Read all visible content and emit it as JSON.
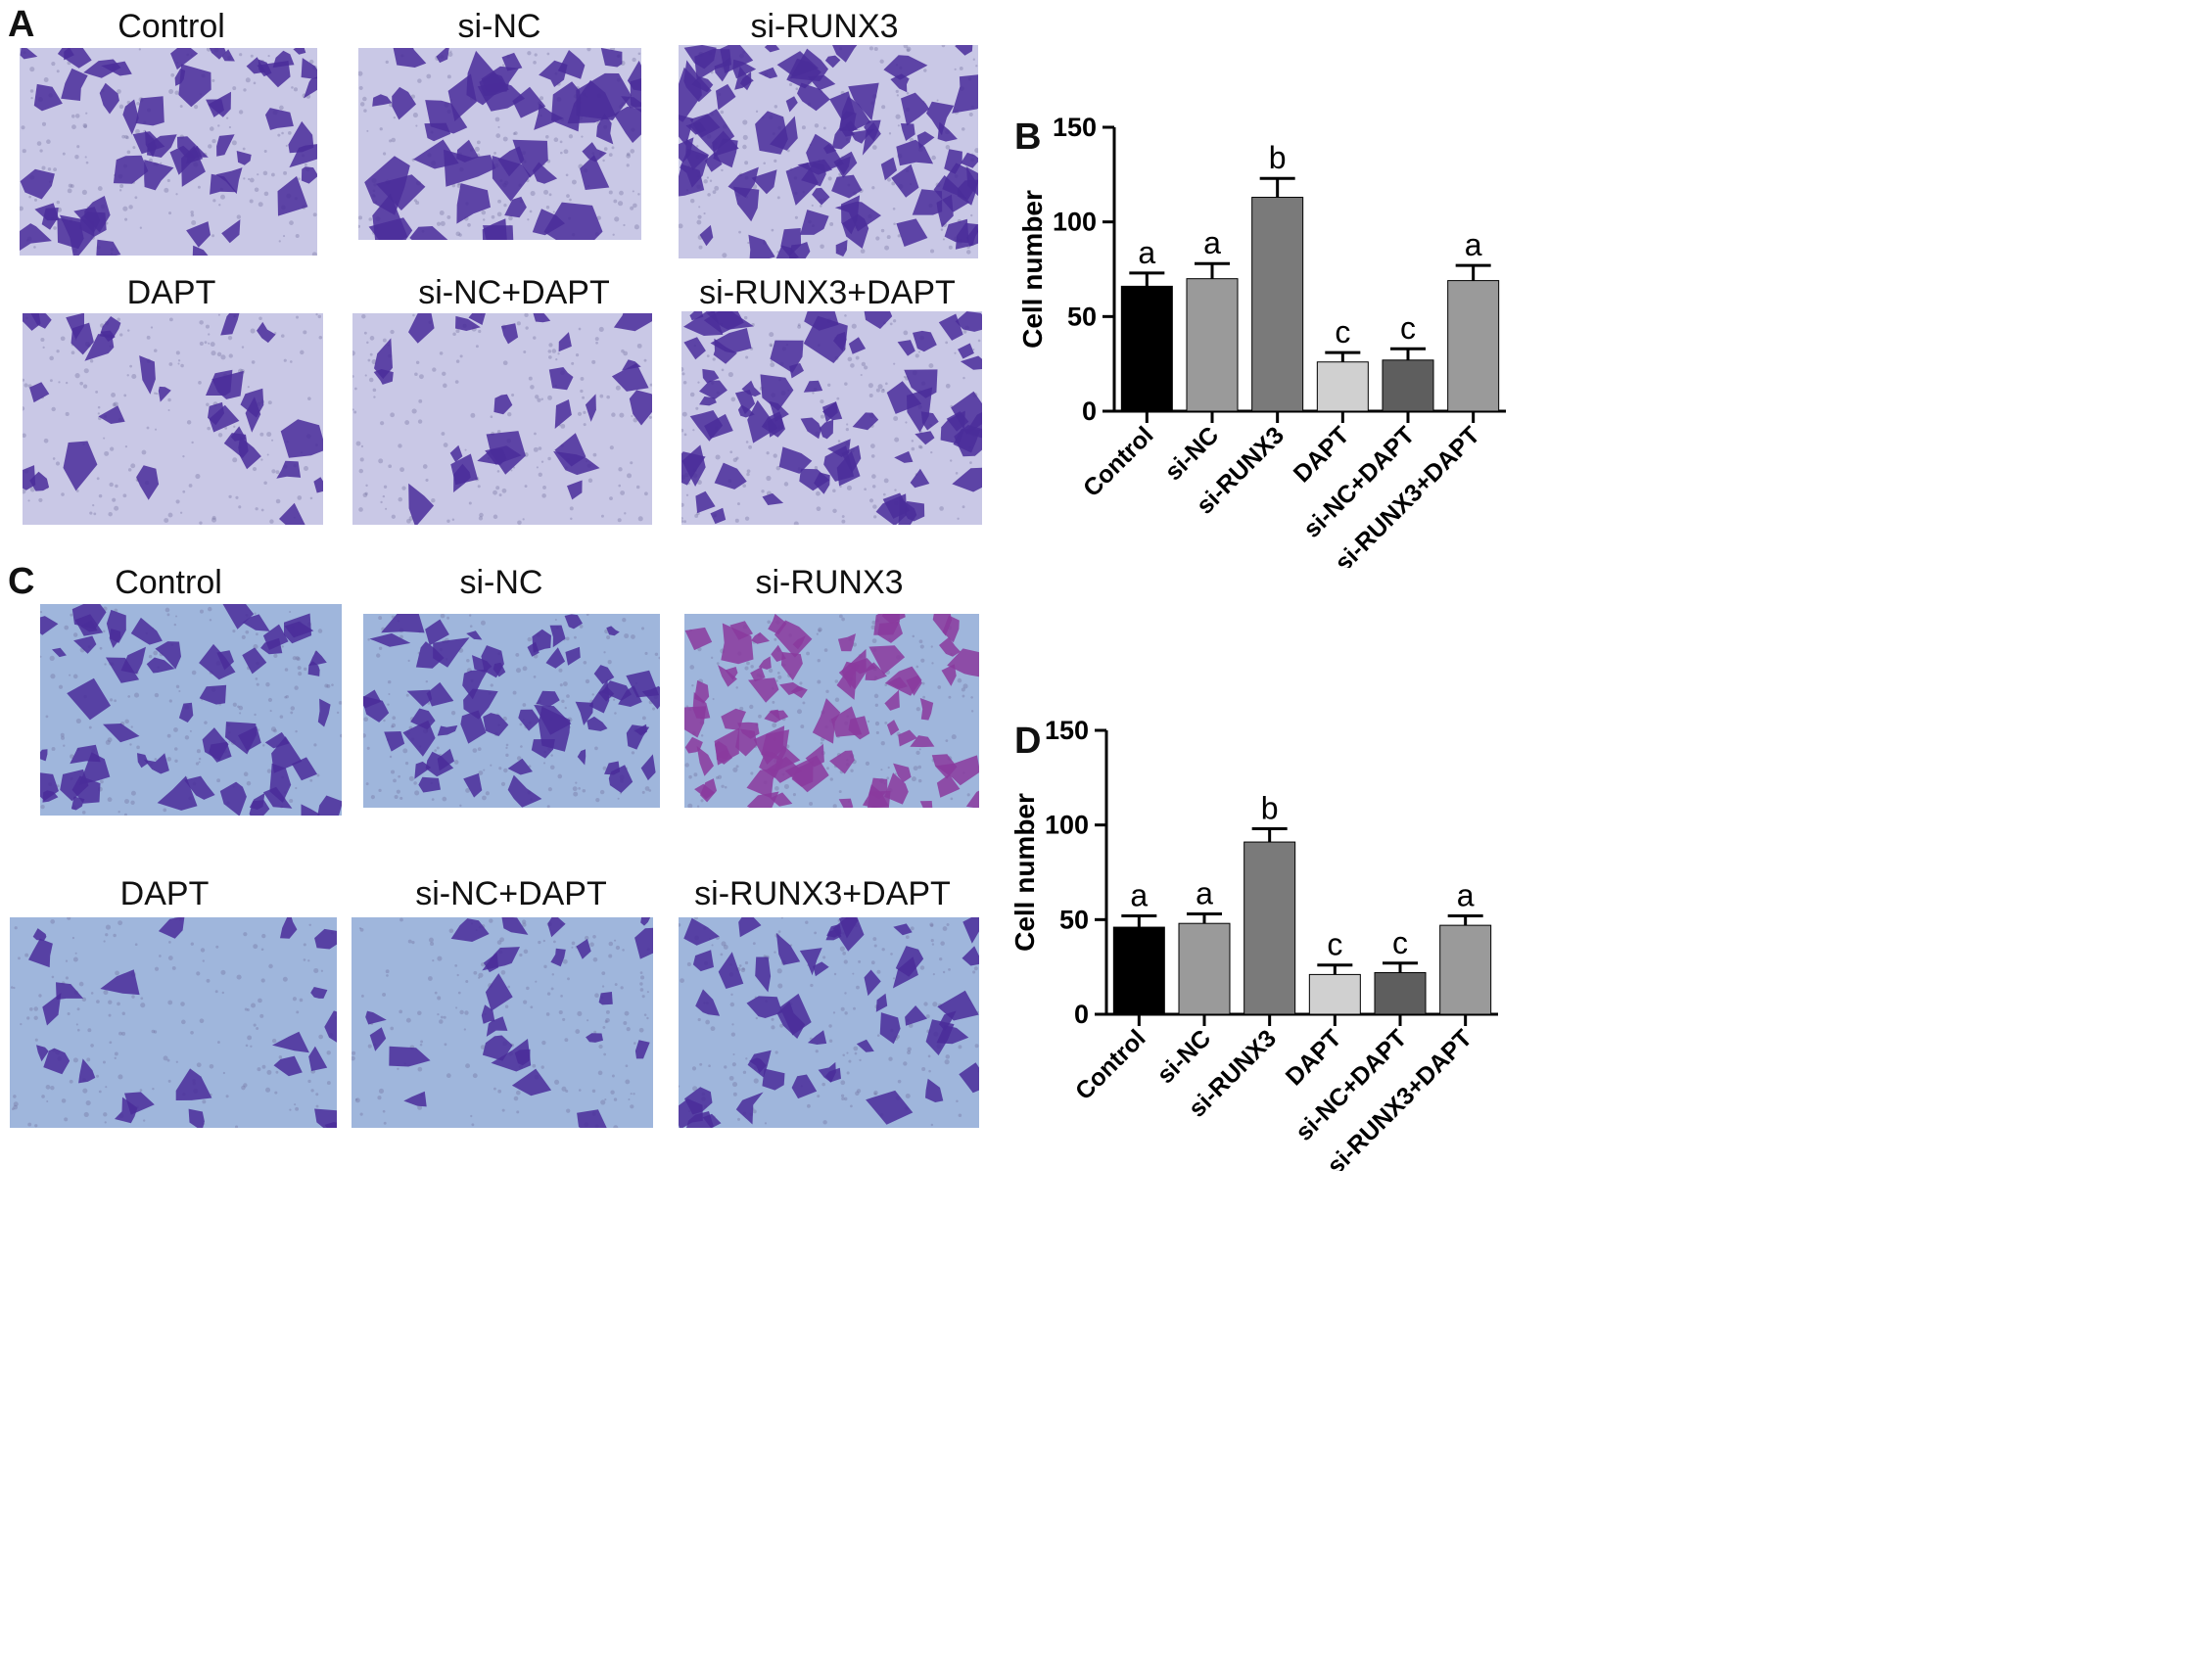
{
  "panels": {
    "A": {
      "letter": "A",
      "labels": [
        "Control",
        "si-NC",
        "si-RUNX3",
        "DAPT",
        "si-NC+DAPT",
        "si-RUNX3+DAPT"
      ]
    },
    "C": {
      "letter": "C",
      "labels": [
        "Control",
        "si-NC",
        "si-RUNX3",
        "DAPT",
        "si-NC+DAPT",
        "si-RUNX3+DAPT"
      ]
    },
    "B": {
      "letter": "B"
    },
    "D": {
      "letter": "D"
    }
  },
  "colors": {
    "stain": "#4a2d9a",
    "stain_pink": "#8a3a9e",
    "bg_A": "#c9c8e6",
    "bg_C": "#9fb6dc",
    "bar_colors": [
      "#000000",
      "#9a9a9a",
      "#7a7a7a",
      "#d0d0d0",
      "#5e5e5e",
      "#9a9a9a"
    ]
  },
  "chart_data": [
    {
      "panel": "B",
      "type": "bar",
      "categories": [
        "Control",
        "si-NC",
        "si-RUNX3",
        "DAPT",
        "si-NC+DAPT",
        "si-RUNX3+DAPT"
      ],
      "values": [
        66,
        70,
        113,
        26,
        27,
        69
      ],
      "errors": [
        7,
        8,
        10,
        5,
        6,
        8
      ],
      "annotations": [
        "a",
        "a",
        "b",
        "c",
        "c",
        "a"
      ],
      "ylabel": "Cell number",
      "xlabel": "",
      "ylim": [
        0,
        150
      ],
      "yticks": [
        "0",
        "50",
        "100",
        "150"
      ]
    },
    {
      "panel": "D",
      "type": "bar",
      "categories": [
        "Control",
        "si-NC",
        "si-RUNX3",
        "DAPT",
        "si-NC+DAPT",
        "si-RUNX3+DAPT"
      ],
      "values": [
        46,
        48,
        91,
        21,
        22,
        47
      ],
      "errors": [
        6,
        5,
        7,
        5,
        5,
        5
      ],
      "annotations": [
        "a",
        "a",
        "b",
        "c",
        "c",
        "a"
      ],
      "ylabel": "Cell number",
      "xlabel": "",
      "ylim": [
        0,
        150
      ],
      "yticks": [
        "0",
        "50",
        "100",
        "150"
      ]
    }
  ]
}
